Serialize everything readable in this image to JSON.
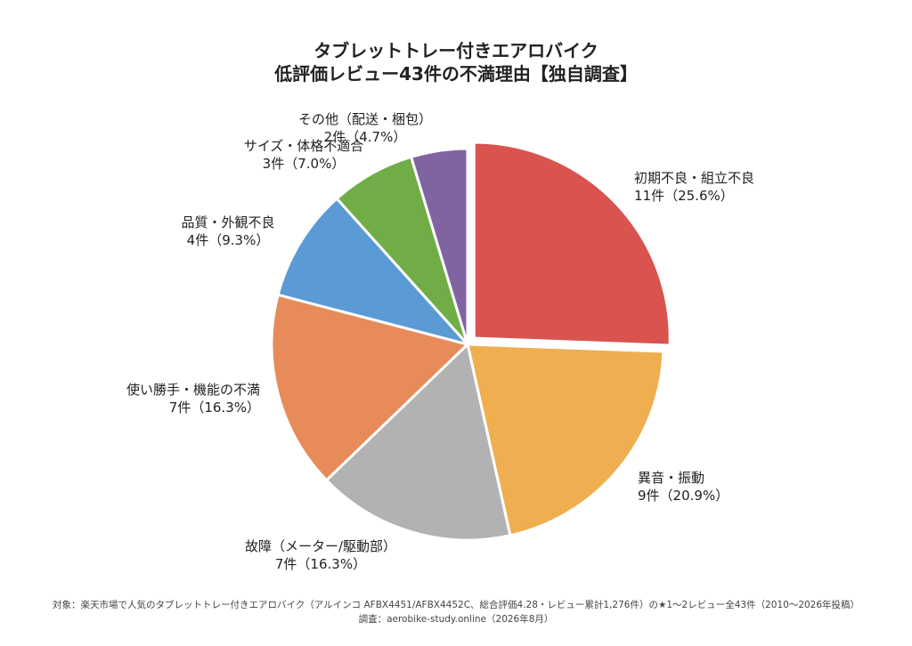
{
  "chart_data": {
    "type": "pie",
    "title": [
      "タブレットトレー付きエアロバイク",
      "低評価レビュー43件の不満理由【独自調査】"
    ],
    "total": 43,
    "slices": [
      {
        "label": "初期不良・組立不良",
        "count": 11,
        "value_label": "11件（25.6%）",
        "percent": 25.6,
        "color": "#D9534F",
        "exploded": true
      },
      {
        "label": "異音・振動",
        "count": 9,
        "value_label": "9件（20.9%）",
        "percent": 20.9,
        "color": "#EFAE4F"
      },
      {
        "label": "故障（メーター/駆動部）",
        "count": 7,
        "value_label": "7件（16.3%）",
        "percent": 16.3,
        "color": "#B2B2B2"
      },
      {
        "label": "使い勝手・機能の不満",
        "count": 7,
        "value_label": "7件（16.3%）",
        "percent": 16.3,
        "color": "#E88B5A"
      },
      {
        "label": "品質・外観不良",
        "count": 4,
        "value_label": "4件（9.3%）",
        "percent": 9.3,
        "color": "#5B9BD5"
      },
      {
        "label": "サイズ・体格不適合",
        "count": 3,
        "value_label": "3件（7.0%）",
        "percent": 7.0,
        "color": "#70AD47"
      },
      {
        "label": "その他（配送・梱包）",
        "count": 2,
        "value_label": "2件（4.7%）",
        "percent": 4.7,
        "color": "#8064A2"
      }
    ]
  },
  "footer": {
    "line1": "対象：楽天市場で人気のタブレットトレー付きエアロバイク（アルインコ AFBX4451/AFBX4452C、総合評価4.28・レビュー累計1,276件）の★1〜2レビュー全43件（2010〜2026年投稿）",
    "line2": "調査：aerobike-study.online（2026年8月）"
  }
}
